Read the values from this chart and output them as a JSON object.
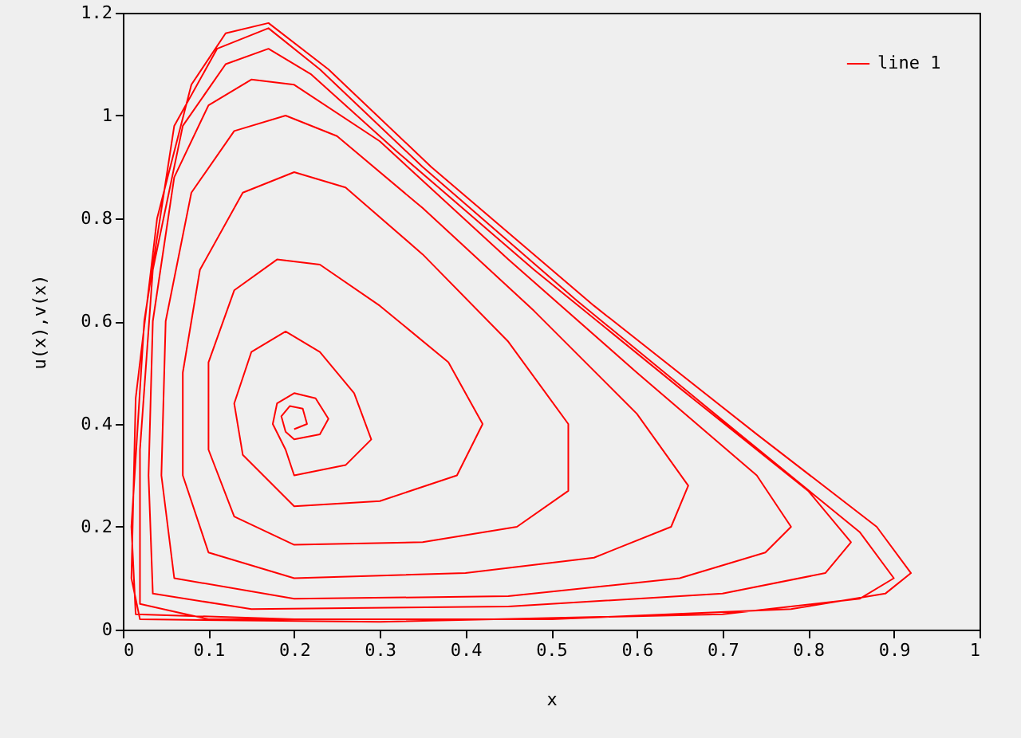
{
  "chart_data": {
    "type": "line",
    "xlabel": "x",
    "ylabel": "u(x),v(x)",
    "xlim": [
      0,
      1
    ],
    "ylim": [
      0,
      1.2
    ],
    "xticks": [
      0,
      0.1,
      0.2,
      0.3,
      0.4,
      0.5,
      0.6,
      0.7,
      0.8,
      0.9,
      1
    ],
    "yticks": [
      0,
      0.2,
      0.4,
      0.6,
      0.8,
      1,
      1.2
    ],
    "grid": false,
    "legend": "top right",
    "series": [
      {
        "name": "line 1",
        "color": "#ff0000",
        "x": [
          0.2,
          0.215,
          0.21,
          0.195,
          0.185,
          0.19,
          0.2,
          0.23,
          0.24,
          0.225,
          0.2,
          0.18,
          0.175,
          0.19,
          0.2,
          0.26,
          0.29,
          0.27,
          0.23,
          0.19,
          0.15,
          0.13,
          0.14,
          0.17,
          0.2,
          0.3,
          0.39,
          0.42,
          0.38,
          0.3,
          0.23,
          0.18,
          0.13,
          0.1,
          0.1,
          0.13,
          0.2,
          0.35,
          0.46,
          0.52,
          0.52,
          0.45,
          0.35,
          0.26,
          0.2,
          0.14,
          0.09,
          0.07,
          0.07,
          0.1,
          0.2,
          0.4,
          0.55,
          0.64,
          0.66,
          0.6,
          0.48,
          0.35,
          0.25,
          0.19,
          0.13,
          0.08,
          0.05,
          0.045,
          0.06,
          0.2,
          0.45,
          0.65,
          0.75,
          0.78,
          0.74,
          0.6,
          0.45,
          0.3,
          0.2,
          0.15,
          0.1,
          0.06,
          0.035,
          0.03,
          0.035,
          0.15,
          0.45,
          0.7,
          0.82,
          0.85,
          0.8,
          0.65,
          0.48,
          0.32,
          0.22,
          0.17,
          0.12,
          0.07,
          0.035,
          0.02,
          0.02,
          0.1,
          0.5,
          0.78,
          0.89,
          0.92,
          0.88,
          0.74,
          0.55,
          0.36,
          0.24,
          0.17,
          0.12,
          0.08,
          0.04,
          0.015,
          0.01,
          0.02,
          0.3,
          0.7,
          0.86,
          0.9,
          0.86,
          0.72,
          0.53,
          0.35,
          0.23,
          0.17,
          0.11,
          0.06,
          0.025,
          0.01,
          0.015,
          0.2
        ],
        "values": [
          0.39,
          0.4,
          0.43,
          0.435,
          0.415,
          0.385,
          0.37,
          0.38,
          0.41,
          0.45,
          0.46,
          0.44,
          0.4,
          0.35,
          0.3,
          0.32,
          0.37,
          0.46,
          0.54,
          0.58,
          0.54,
          0.44,
          0.34,
          0.29,
          0.24,
          0.25,
          0.3,
          0.4,
          0.52,
          0.63,
          0.71,
          0.72,
          0.66,
          0.52,
          0.35,
          0.22,
          0.165,
          0.17,
          0.2,
          0.27,
          0.4,
          0.56,
          0.73,
          0.86,
          0.89,
          0.85,
          0.7,
          0.5,
          0.3,
          0.15,
          0.1,
          0.11,
          0.14,
          0.2,
          0.28,
          0.42,
          0.62,
          0.82,
          0.96,
          1.0,
          0.97,
          0.85,
          0.6,
          0.3,
          0.1,
          0.06,
          0.065,
          0.1,
          0.15,
          0.2,
          0.3,
          0.5,
          0.72,
          0.95,
          1.06,
          1.07,
          1.02,
          0.88,
          0.6,
          0.3,
          0.07,
          0.04,
          0.045,
          0.07,
          0.11,
          0.17,
          0.27,
          0.47,
          0.7,
          0.93,
          1.08,
          1.13,
          1.1,
          0.98,
          0.7,
          0.35,
          0.05,
          0.02,
          0.02,
          0.04,
          0.07,
          0.11,
          0.2,
          0.38,
          0.63,
          0.9,
          1.09,
          1.18,
          1.16,
          1.06,
          0.8,
          0.45,
          0.1,
          0.02,
          0.015,
          0.03,
          0.06,
          0.1,
          0.19,
          0.38,
          0.64,
          0.9,
          1.09,
          1.17,
          1.13,
          0.98,
          0.6,
          0.2,
          0.03,
          0.02
        ]
      }
    ]
  }
}
